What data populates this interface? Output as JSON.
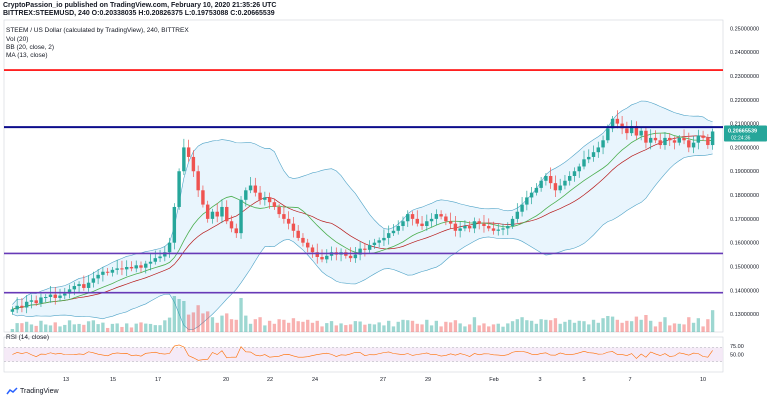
{
  "header": {
    "line1": "CryptoPassion_io published on TradingView.com, February 10, 2020 21:35:26 UTC",
    "line2": "BITTREX:STEEMUSD, 240  O:0.20338035  H:0.20826375  L:0.19753088  C:0.20665539"
  },
  "indicators": {
    "title": "STEEM / US Dollar (calculated by TradingView), 240, BITTREX",
    "vol": "Vol (20)",
    "bb": "BB (20, close, 2)",
    "ma": "MA (13, close)",
    "rsi": "RSI (14, close)"
  },
  "price_badge": {
    "value": "0.20665539",
    "countdown": "02:24:36",
    "color": "#26a69a"
  },
  "brand": {
    "name": "TradingView"
  },
  "colors": {
    "up": "#26a69a",
    "down": "#ef5350",
    "ma": "#4caf50",
    "bb_basis": "#b71c1c",
    "bb_band": "#4fa3c7",
    "bb_fill": "#e3f2fd",
    "red_line": "#ff0000",
    "blue_line": "#0d0d8c",
    "purple_line": "#673ab7",
    "rsi": "#ff6d00"
  },
  "chart_data": {
    "type": "candlestick",
    "symbol": "BITTREX:STEEMUSD",
    "interval": "240",
    "yaxis": {
      "ticks": [
        "0.25000000",
        "0.24000000",
        "0.23000000",
        "0.22000000",
        "0.21000000",
        "0.20000000",
        "0.19000000",
        "0.18000000",
        "0.17000000",
        "0.16000000",
        "0.15000000",
        "0.14000000",
        "0.13000000"
      ],
      "range": [
        0.1225,
        0.2535
      ]
    },
    "xaxis": {
      "ticks": [
        "13",
        "15",
        "17",
        "20",
        "22",
        "24",
        "27",
        "29",
        "Feb",
        "3",
        "5",
        "7",
        "10"
      ]
    },
    "horizontal_levels": [
      {
        "value": 0.2325,
        "color": "red"
      },
      {
        "value": 0.2085,
        "color": "blue"
      },
      {
        "value": 0.1555,
        "color": "purple"
      },
      {
        "value": 0.139,
        "color": "purple"
      }
    ],
    "price_close": [
      0.132,
      0.1335,
      0.1328,
      0.1352,
      0.1358,
      0.1346,
      0.137,
      0.1372,
      0.1382,
      0.1368,
      0.1378,
      0.1386,
      0.1404,
      0.1418,
      0.1426,
      0.141,
      0.1432,
      0.145,
      0.1465,
      0.1478,
      0.1474,
      0.1486,
      0.1492,
      0.1488,
      0.1498,
      0.1492,
      0.1505,
      0.1495,
      0.1512,
      0.152,
      0.1535,
      0.1542,
      0.156,
      0.16,
      0.175,
      0.19,
      0.2,
      0.196,
      0.19,
      0.182,
      0.176,
      0.17,
      0.173,
      0.171,
      0.175,
      0.169,
      0.166,
      0.164,
      0.178,
      0.182,
      0.184,
      0.181,
      0.178,
      0.179,
      0.177,
      0.175,
      0.172,
      0.17,
      0.168,
      0.165,
      0.162,
      0.16,
      0.158,
      0.156,
      0.154,
      0.153,
      0.1545,
      0.156,
      0.155,
      0.156,
      0.1545,
      0.1535,
      0.155,
      0.1575,
      0.157,
      0.159,
      0.16,
      0.161,
      0.162,
      0.164,
      0.165,
      0.167,
      0.169,
      0.172,
      0.17,
      0.168,
      0.167,
      0.169,
      0.17,
      0.172,
      0.171,
      0.169,
      0.168,
      0.165,
      0.166,
      0.167,
      0.166,
      0.169,
      0.168,
      0.167,
      0.166,
      0.165,
      0.1655,
      0.166,
      0.167,
      0.17,
      0.173,
      0.176,
      0.179,
      0.181,
      0.183,
      0.186,
      0.188,
      0.185,
      0.182,
      0.184,
      0.186,
      0.188,
      0.19,
      0.192,
      0.195,
      0.196,
      0.198,
      0.2,
      0.203,
      0.208,
      0.212,
      0.21,
      0.208,
      0.206,
      0.209,
      0.205,
      0.207,
      0.202,
      0.204,
      0.203,
      0.201,
      0.204,
      0.203,
      0.202,
      0.204,
      0.203,
      0.2,
      0.202,
      0.205,
      0.204,
      0.201,
      0.2067
    ]
  }
}
